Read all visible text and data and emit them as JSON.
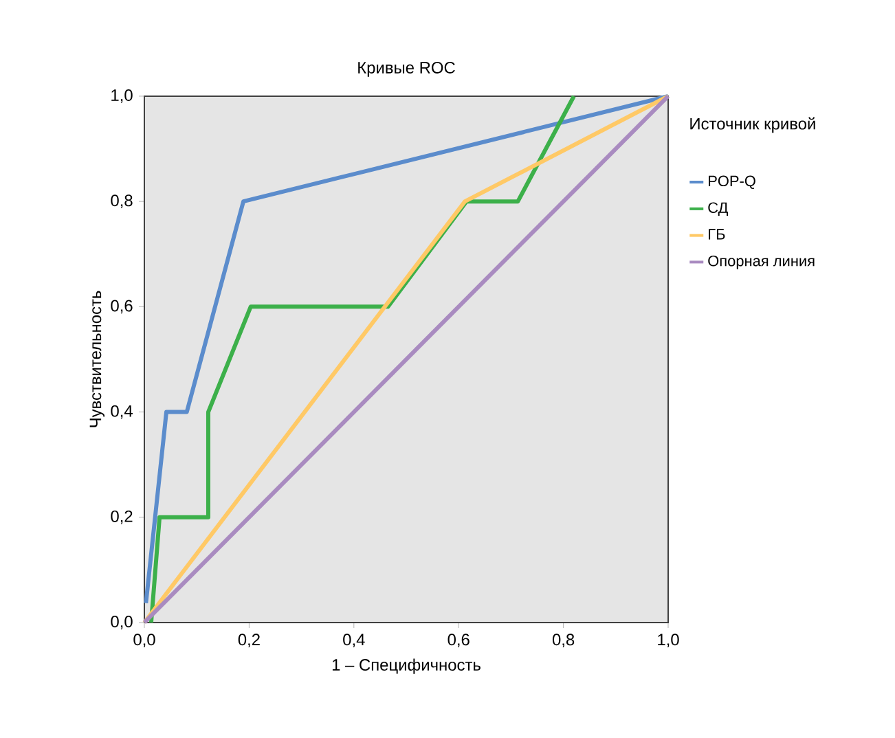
{
  "chart_data": {
    "type": "line",
    "title": "Кривые ROC",
    "xlabel": "1 – Специфичность",
    "ylabel": "Чувствительность",
    "legend_title": "Источник кривой",
    "legend": "right",
    "grid": false,
    "marker": "none",
    "line_style": "solid",
    "xlim": [
      0,
      1
    ],
    "ylim": [
      0,
      1
    ],
    "xticks": [
      {
        "value": 0,
        "label": "0,0"
      },
      {
        "value": 0.2,
        "label": "0,2"
      },
      {
        "value": 0.4,
        "label": "0,4"
      },
      {
        "value": 0.6,
        "label": "0,6"
      },
      {
        "value": 0.8,
        "label": "0,8"
      },
      {
        "value": 1,
        "label": "1,0"
      }
    ],
    "yticks": [
      {
        "value": 0,
        "label": "0,0"
      },
      {
        "value": 0.2,
        "label": "0,2"
      },
      {
        "value": 0.4,
        "label": "0,4"
      },
      {
        "value": 0.6,
        "label": "0,6"
      },
      {
        "value": 0.8,
        "label": "0,8"
      },
      {
        "value": 1,
        "label": "1,0"
      }
    ],
    "series": [
      {
        "name": "POP-Q",
        "color": "#5b8ccc",
        "x": [
          0.003,
          0.042,
          0.081,
          0.189,
          1
        ],
        "values": [
          0.037,
          0.4,
          0.4,
          0.8,
          1
        ]
      },
      {
        "name": "СД",
        "color": "#3cb04a",
        "x": [
          0.013,
          0.029,
          0.122,
          0.122,
          0.203,
          0.465,
          0.615,
          0.713,
          0.82
        ],
        "values": [
          0,
          0.2,
          0.2,
          0.4,
          0.6,
          0.6,
          0.8,
          0.8,
          1
        ]
      },
      {
        "name": "ГБ",
        "color": "#ffc966",
        "x": [
          0,
          0.612,
          1
        ],
        "values": [
          0,
          0.8,
          1
        ]
      },
      {
        "name": "Опорная линия",
        "color": "#a98bc0",
        "x": [
          0,
          1
        ],
        "values": [
          0,
          1
        ]
      }
    ]
  }
}
